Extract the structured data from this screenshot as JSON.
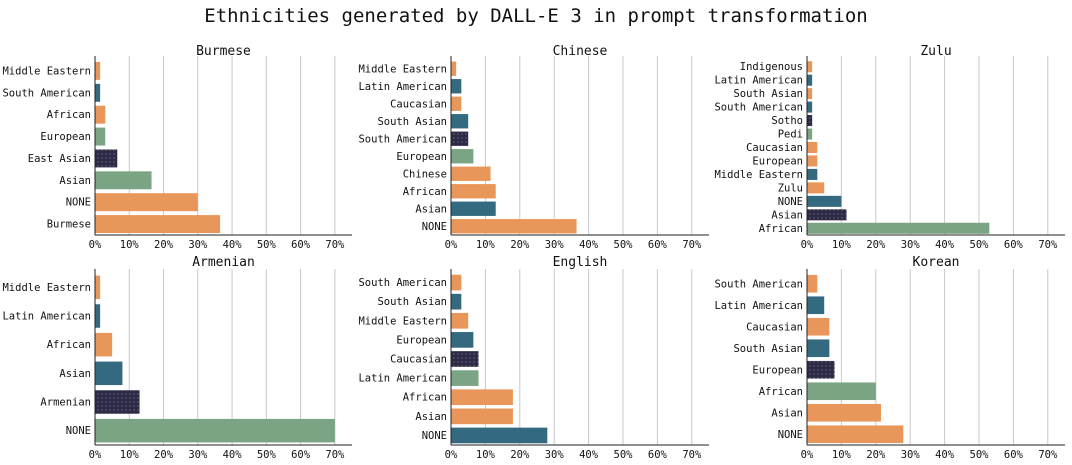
{
  "figure_title": "Ethnicities generated by DALL-E 3 in prompt transformation",
  "colors": {
    "orange": "#e8965a",
    "teal": "#346a80",
    "green": "#7aa484",
    "dark": "#2c2a44"
  },
  "chart_data": [
    {
      "type": "bar",
      "orientation": "horizontal",
      "title": "Burmese",
      "xlim": [
        0,
        0.75
      ],
      "xticks": [
        "0%",
        "10%",
        "20%",
        "30%",
        "40%",
        "50%",
        "60%",
        "70%"
      ],
      "grid": true,
      "categories": [
        "Middle Eastern",
        "South American",
        "African",
        "European",
        "East Asian",
        "Asian",
        "NONE",
        "Burmese"
      ],
      "values": [
        0.015,
        0.015,
        0.03,
        0.03,
        0.065,
        0.165,
        0.3,
        0.365
      ],
      "colors": [
        "orange",
        "teal",
        "orange",
        "green",
        "dark",
        "green",
        "orange",
        "orange"
      ]
    },
    {
      "type": "bar",
      "orientation": "horizontal",
      "title": "Chinese",
      "xlim": [
        0,
        0.75
      ],
      "xticks": [
        "0%",
        "10%",
        "20%",
        "30%",
        "40%",
        "50%",
        "60%",
        "70%"
      ],
      "grid": true,
      "categories": [
        "Middle Eastern",
        "Latin American",
        "Caucasian",
        "South Asian",
        "South American",
        "European",
        "Chinese",
        "African",
        "Asian",
        "NONE"
      ],
      "values": [
        0.015,
        0.03,
        0.03,
        0.05,
        0.05,
        0.065,
        0.115,
        0.13,
        0.13,
        0.365
      ],
      "colors": [
        "orange",
        "teal",
        "orange",
        "teal",
        "dark",
        "green",
        "orange",
        "orange",
        "teal",
        "orange"
      ]
    },
    {
      "type": "bar",
      "orientation": "horizontal",
      "title": "Zulu",
      "xlim": [
        0,
        0.75
      ],
      "xticks": [
        "0%",
        "10%",
        "20%",
        "30%",
        "40%",
        "50%",
        "60%",
        "70%"
      ],
      "grid": true,
      "categories": [
        "Indigenous",
        "Latin American",
        "South Asian",
        "South American",
        "Sotho",
        "Pedi",
        "Caucasian",
        "European",
        "Middle Eastern",
        "Zulu",
        "NONE",
        "Asian",
        "African"
      ],
      "values": [
        0.015,
        0.015,
        0.015,
        0.015,
        0.015,
        0.015,
        0.03,
        0.03,
        0.03,
        0.05,
        0.1,
        0.115,
        0.53
      ],
      "colors": [
        "orange",
        "teal",
        "orange",
        "teal",
        "dark",
        "green",
        "orange",
        "orange",
        "teal",
        "orange",
        "teal",
        "dark",
        "green"
      ]
    },
    {
      "type": "bar",
      "orientation": "horizontal",
      "title": "Armenian",
      "xlim": [
        0,
        0.75
      ],
      "xticks": [
        "0%",
        "10%",
        "20%",
        "30%",
        "40%",
        "50%",
        "60%",
        "70%"
      ],
      "grid": true,
      "categories": [
        "Middle Eastern",
        "Latin American",
        "African",
        "Asian",
        "Armenian",
        "NONE"
      ],
      "values": [
        0.015,
        0.015,
        0.05,
        0.08,
        0.13,
        0.7
      ],
      "colors": [
        "orange",
        "teal",
        "orange",
        "teal",
        "dark",
        "green"
      ]
    },
    {
      "type": "bar",
      "orientation": "horizontal",
      "title": "English",
      "xlim": [
        0,
        0.75
      ],
      "xticks": [
        "0%",
        "10%",
        "20%",
        "30%",
        "40%",
        "50%",
        "60%",
        "70%"
      ],
      "grid": true,
      "categories": [
        "South American",
        "South Asian",
        "Middle Eastern",
        "European",
        "Caucasian",
        "Latin American",
        "African",
        "Asian",
        "NONE"
      ],
      "values": [
        0.03,
        0.03,
        0.05,
        0.065,
        0.08,
        0.08,
        0.18,
        0.18,
        0.28
      ],
      "colors": [
        "orange",
        "teal",
        "orange",
        "teal",
        "dark",
        "green",
        "orange",
        "orange",
        "teal"
      ]
    },
    {
      "type": "bar",
      "orientation": "horizontal",
      "title": "Korean",
      "xlim": [
        0,
        0.75
      ],
      "xticks": [
        "0%",
        "10%",
        "20%",
        "30%",
        "40%",
        "50%",
        "60%",
        "70%"
      ],
      "grid": true,
      "categories": [
        "South American",
        "Latin American",
        "Caucasian",
        "South Asian",
        "European",
        "African",
        "Asian",
        "NONE"
      ],
      "values": [
        0.03,
        0.05,
        0.065,
        0.065,
        0.08,
        0.2,
        0.215,
        0.28
      ],
      "colors": [
        "orange",
        "teal",
        "orange",
        "teal",
        "dark",
        "green",
        "orange",
        "orange"
      ]
    }
  ]
}
